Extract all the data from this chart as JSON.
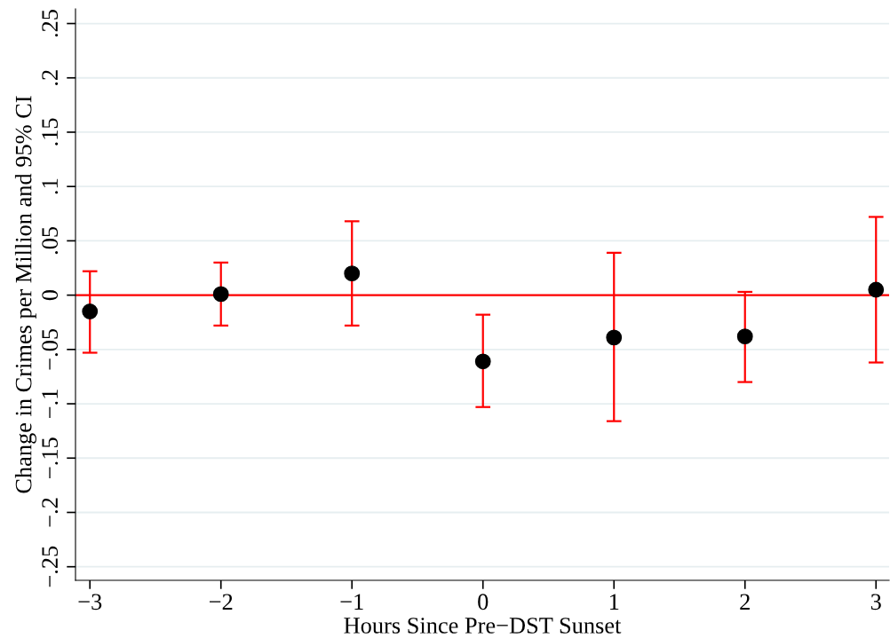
{
  "chart_data": {
    "type": "scatter",
    "xlabel": "Hours Since Pre−DST Sunset",
    "ylabel": "Change in Crimes per Million and 95% CI",
    "x": [
      -3,
      -2,
      -1,
      0,
      1,
      2,
      3
    ],
    "series": [
      {
        "color": "#000000",
        "values": [
          -0.015,
          0.001,
          0.02,
          -0.061,
          -0.039,
          -0.038,
          0.005
        ],
        "errors": [
          [
            -0.053,
            0.022
          ],
          [
            -0.028,
            0.03
          ],
          [
            -0.028,
            0.068
          ],
          [
            -0.103,
            -0.018
          ],
          [
            -0.116,
            0.039
          ],
          [
            -0.08,
            0.003
          ],
          [
            -0.062,
            0.072
          ]
        ]
      }
    ],
    "xlim": [
      -3.11,
      3.1
    ],
    "xticks": [
      {
        "value": -3,
        "label": "−3"
      },
      {
        "value": -2,
        "label": "−2"
      },
      {
        "value": -1,
        "label": "−1"
      },
      0,
      1,
      2,
      3
    ],
    "ylim": [
      -0.2625,
      0.2635
    ],
    "yticks": [
      {
        "value": -0.25,
        "label": "−.25"
      },
      {
        "value": -0.2,
        "label": "−.2"
      },
      {
        "value": -0.15,
        "label": "−.15"
      },
      {
        "value": -0.1,
        "label": "−.1"
      },
      {
        "value": -0.05,
        "label": "−.05"
      },
      0,
      {
        "value": 0.05,
        "label": ".05"
      },
      {
        "value": 0.1,
        "label": ".1"
      },
      {
        "value": 0.15,
        "label": ".15"
      },
      {
        "value": 0.2,
        "label": ".2"
      },
      {
        "value": 0.25,
        "label": ".25"
      }
    ],
    "grid": "y",
    "marker": "circle",
    "ref_lines": [
      {
        "axis": "y",
        "value": 0,
        "color": "#ff0000",
        "line_style": "solid"
      }
    ]
  }
}
